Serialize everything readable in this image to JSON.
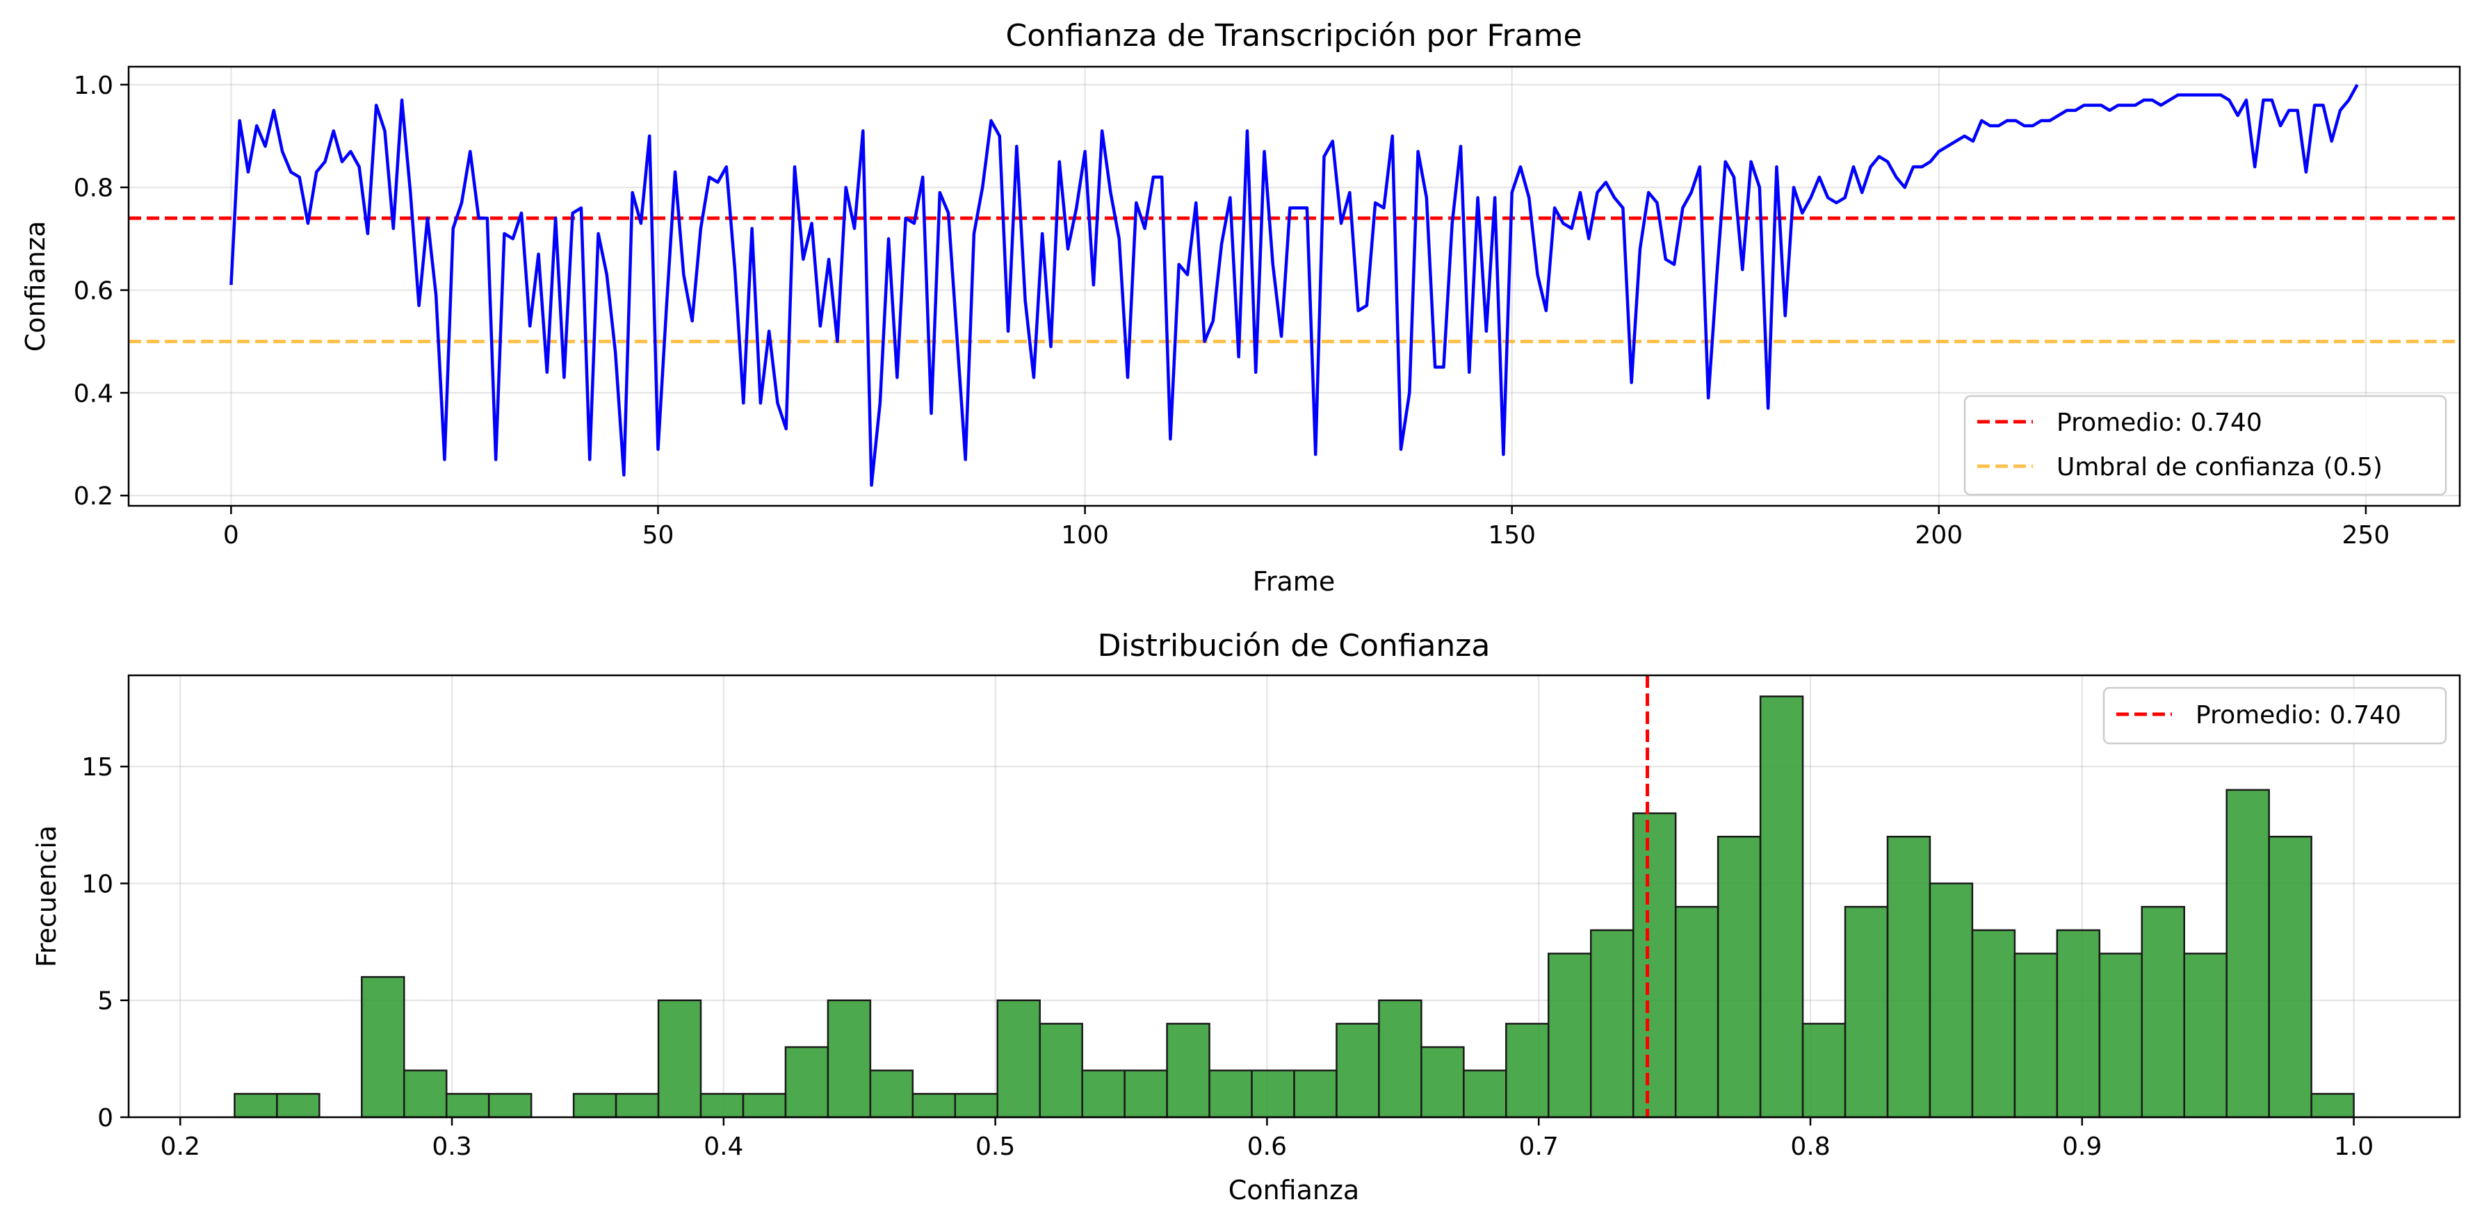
{
  "chart_data": [
    {
      "type": "line",
      "title": "Confianza de Transcripción por Frame",
      "xlabel": "Frame",
      "ylabel": "Confianza",
      "xlim": [
        -12,
        261
      ],
      "ylim": [
        0.18,
        1.035
      ],
      "xticks": [
        0,
        50,
        100,
        150,
        200,
        250
      ],
      "yticks": [
        0.2,
        0.4,
        0.6,
        0.8,
        1.0
      ],
      "grid": true,
      "legend_position": "lower-right",
      "series": [
        {
          "name": "",
          "color": "#0000ff",
          "x_start": 0,
          "x_step": 1,
          "values": [
            0.61,
            0.93,
            0.83,
            0.92,
            0.88,
            0.95,
            0.87,
            0.83,
            0.82,
            0.73,
            0.83,
            0.85,
            0.91,
            0.85,
            0.87,
            0.84,
            0.71,
            0.96,
            0.91,
            0.72,
            0.97,
            0.79,
            0.57,
            0.74,
            0.59,
            0.27,
            0.72,
            0.77,
            0.87,
            0.74,
            0.74,
            0.27,
            0.71,
            0.7,
            0.75,
            0.53,
            0.67,
            0.44,
            0.74,
            0.43,
            0.75,
            0.76,
            0.27,
            0.71,
            0.63,
            0.48,
            0.24,
            0.79,
            0.73,
            0.9,
            0.29,
            0.57,
            0.83,
            0.63,
            0.54,
            0.72,
            0.82,
            0.81,
            0.84,
            0.64,
            0.38,
            0.72,
            0.38,
            0.52,
            0.38,
            0.33,
            0.84,
            0.66,
            0.73,
            0.53,
            0.66,
            0.5,
            0.8,
            0.72,
            0.91,
            0.22,
            0.38,
            0.7,
            0.43,
            0.74,
            0.73,
            0.82,
            0.36,
            0.79,
            0.75,
            0.51,
            0.27,
            0.71,
            0.8,
            0.93,
            0.9,
            0.52,
            0.88,
            0.58,
            0.43,
            0.71,
            0.49,
            0.85,
            0.68,
            0.76,
            0.87,
            0.61,
            0.91,
            0.79,
            0.7,
            0.43,
            0.77,
            0.72,
            0.82,
            0.82,
            0.31,
            0.65,
            0.63,
            0.77,
            0.5,
            0.54,
            0.69,
            0.78,
            0.47,
            0.91,
            0.44,
            0.87,
            0.65,
            0.51,
            0.76,
            0.76,
            0.76,
            0.28,
            0.86,
            0.89,
            0.73,
            0.79,
            0.56,
            0.57,
            0.77,
            0.76,
            0.9,
            0.29,
            0.4,
            0.87,
            0.78,
            0.45,
            0.45,
            0.73,
            0.88,
            0.44,
            0.78,
            0.52,
            0.78,
            0.28,
            0.79,
            0.84,
            0.78,
            0.63,
            0.56,
            0.76,
            0.73,
            0.72,
            0.79,
            0.7,
            0.79,
            0.81,
            0.78,
            0.76,
            0.42,
            0.68,
            0.79,
            0.77,
            0.66,
            0.65,
            0.76,
            0.79,
            0.84,
            0.39,
            0.63,
            0.85,
            0.82,
            0.64,
            0.85,
            0.8,
            0.37,
            0.84,
            0.55,
            0.8,
            0.75,
            0.78,
            0.82,
            0.78,
            0.77,
            0.78,
            0.84,
            0.79,
            0.84,
            0.86,
            0.85,
            0.82,
            0.8,
            0.84,
            0.84,
            0.85,
            0.87,
            0.88,
            0.89,
            0.9,
            0.89,
            0.93,
            0.92,
            0.92,
            0.93,
            0.93,
            0.92,
            0.92,
            0.93,
            0.93,
            0.94,
            0.95,
            0.95,
            0.96,
            0.96,
            0.96,
            0.95,
            0.96,
            0.96,
            0.96,
            0.97,
            0.97,
            0.96,
            0.97,
            0.98,
            0.98,
            0.98,
            0.98,
            0.98,
            0.98,
            0.97,
            0.94,
            0.97,
            0.84,
            0.97,
            0.97,
            0.92,
            0.95,
            0.95,
            0.83,
            0.96,
            0.96,
            0.89,
            0.95,
            0.97,
            1.0
          ]
        }
      ],
      "reference_lines": [
        {
          "orientation": "horizontal",
          "value": 0.74,
          "color": "#ff0000",
          "style": "dashed",
          "label": "Promedio: 0.740"
        },
        {
          "orientation": "horizontal",
          "value": 0.5,
          "color": "#ffa500",
          "style": "dashed",
          "label": "Umbral de confianza (0.5)"
        }
      ]
    },
    {
      "type": "bar",
      "subtype": "histogram",
      "title": "Distribución de Confianza",
      "xlabel": "Confianza",
      "ylabel": "Frecuencia",
      "xlim": [
        0.181,
        1.039
      ],
      "ylim": [
        0,
        18.9
      ],
      "xticks": [
        0.2,
        0.3,
        0.4,
        0.5,
        0.6,
        0.7,
        0.8,
        0.9,
        1.0
      ],
      "yticks": [
        0,
        5,
        10,
        15
      ],
      "grid": true,
      "legend_position": "upper-right",
      "bar_color": "#2e9a2e",
      "bin_start": 0.22,
      "bin_width": 0.0156,
      "values": [
        1,
        1,
        0,
        6,
        2,
        1,
        1,
        0,
        1,
        1,
        5,
        1,
        1,
        3,
        5,
        2,
        1,
        1,
        5,
        4,
        2,
        2,
        4,
        2,
        2,
        2,
        4,
        5,
        3,
        2,
        4,
        7,
        8,
        13,
        9,
        12,
        18,
        4,
        9,
        12,
        10,
        8,
        7,
        8,
        7,
        9,
        7,
        14,
        12,
        1
      ],
      "reference_lines": [
        {
          "orientation": "vertical",
          "value": 0.74,
          "color": "#ff0000",
          "style": "dashed",
          "label": "Promedio: 0.740"
        }
      ]
    }
  ]
}
